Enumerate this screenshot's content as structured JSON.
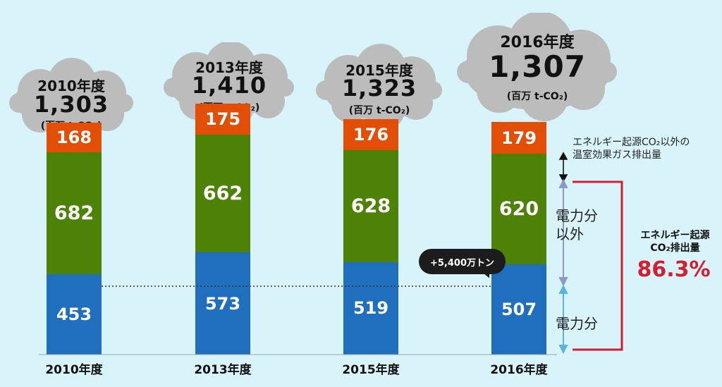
{
  "chart_data": {
    "type": "bar",
    "stacked": true,
    "categories": [
      "2010年度",
      "2013年度",
      "2015年度",
      "2016年度"
    ],
    "totals": [
      1303,
      1410,
      1323,
      1307
    ],
    "series": [
      {
        "name": "電力分",
        "color": "#1f6fbe",
        "values": [
          453,
          573,
          519,
          507
        ]
      },
      {
        "name": "電力分以外",
        "color": "#4d8207",
        "values": [
          682,
          662,
          628,
          620
        ]
      },
      {
        "name": "エネルギー起源CO₂以外の温室効果ガス排出量",
        "color": "#e24e06",
        "values": [
          168,
          175,
          176,
          179
        ]
      }
    ],
    "xlabel": "",
    "ylabel": "",
    "grid": false
  },
  "columns": [
    {
      "year_label": "2010年度",
      "total": "1,303",
      "unit": "(百万 t-CO₂)",
      "blue": "453",
      "green": "682",
      "orange": "168"
    },
    {
      "year_label": "2013年度",
      "total": "1,410",
      "unit": "(百万 t-CO₂)",
      "blue": "573",
      "green": "662",
      "orange": "175"
    },
    {
      "year_label": "2015年度",
      "total": "1,323",
      "unit": "(百万 t-CO₂)",
      "blue": "519",
      "green": "628",
      "orange": "176"
    },
    {
      "year_label": "2016年度",
      "total": "1,307",
      "unit": "(百万 t-CO₂)",
      "blue": "507",
      "green": "620",
      "orange": "179"
    }
  ],
  "annotations": {
    "other_gas_line1": "エネルギー起源CO₂以外の",
    "other_gas_line2": "温室効果ガス排出量",
    "non_power_line1": "電力分",
    "non_power_line2": "以外",
    "power": "電力分",
    "energy_origin_line1": "エネルギー起源",
    "energy_origin_line2": "CO₂排出量",
    "energy_origin_share": "86.3%",
    "change_bubble": "+5,400万トン"
  },
  "colors": {
    "background": "#d9f3fb",
    "cloud": "#bcbcbc",
    "accent_red": "#d21e2e",
    "arrow_blue": "#8b98c8",
    "arrow_cyan": "#5bb4e0"
  }
}
